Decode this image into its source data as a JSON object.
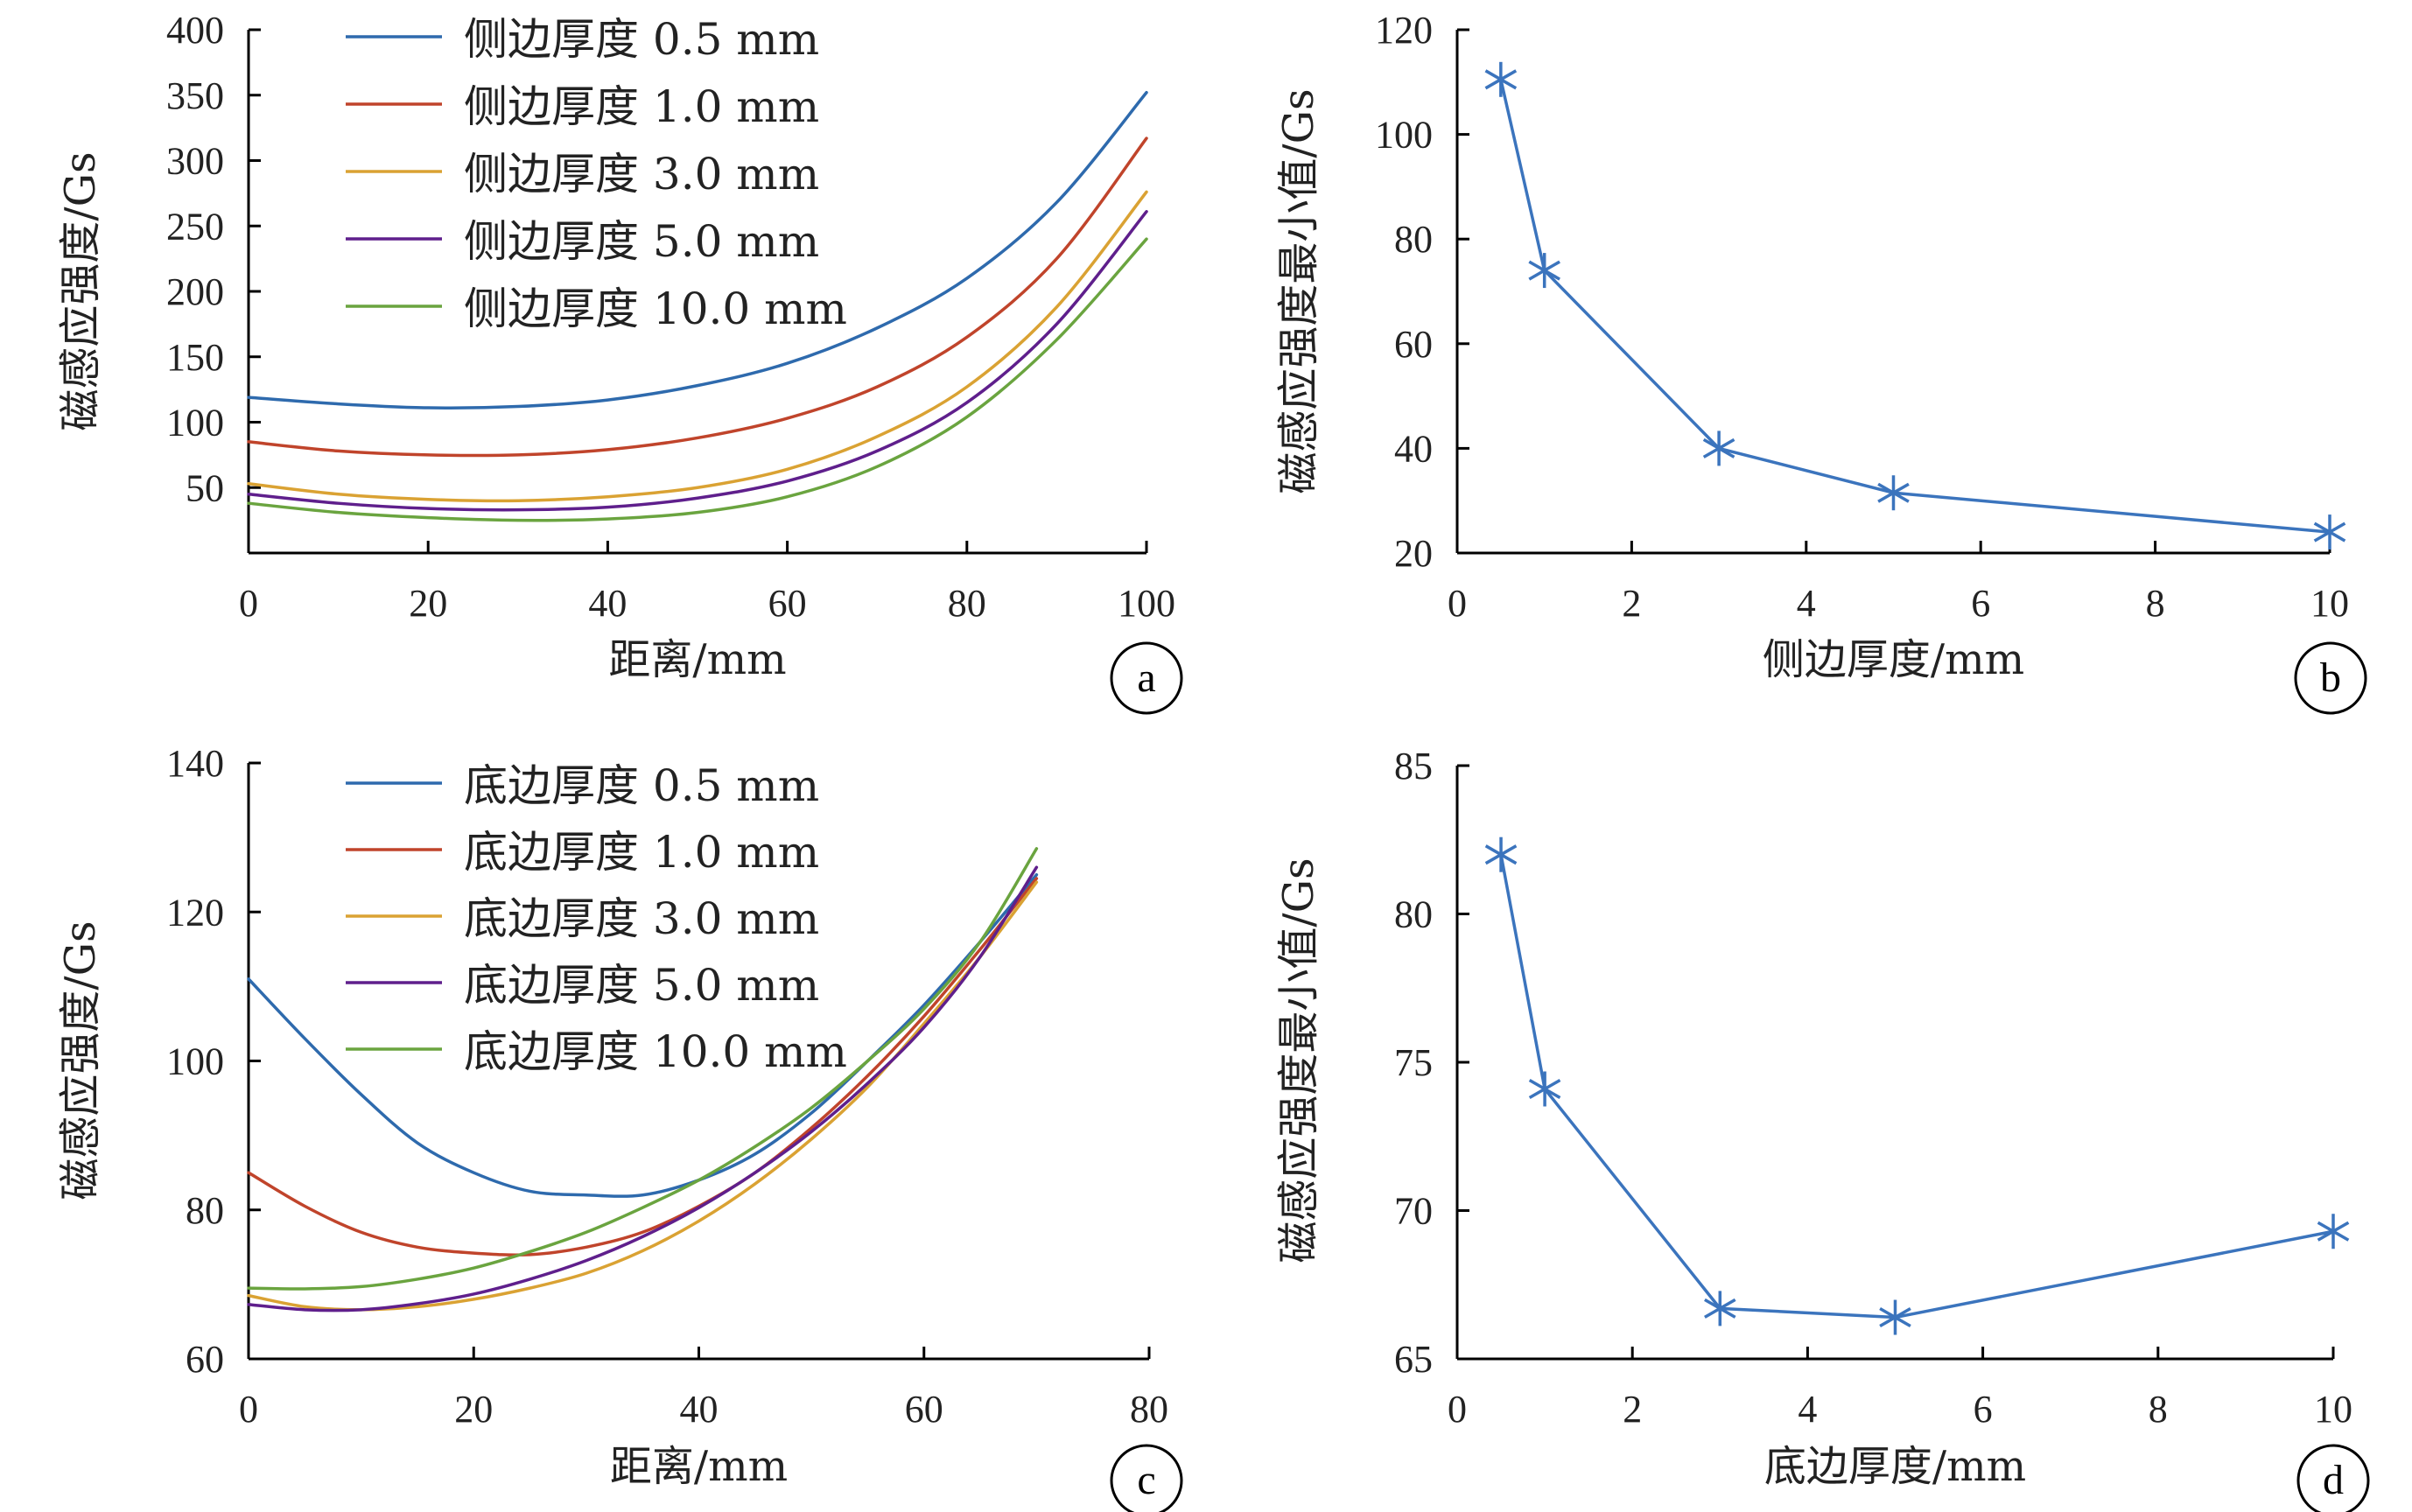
{
  "colors": {
    "blue": "#2e6aad",
    "red": "#c0442b",
    "orange": "#daa233",
    "purple": "#5f1f8c",
    "green": "#6aa43f",
    "marker": "#3b74bd"
  },
  "chart_data": [
    {
      "panel": "a",
      "type": "line",
      "xlabel": "距离/mm",
      "ylabel": "磁感应强度/Gs",
      "xlim": [
        0,
        100
      ],
      "ylim": [
        0,
        400
      ],
      "xticks": [
        0,
        20,
        40,
        60,
        80,
        100
      ],
      "yticks": [
        50,
        100,
        150,
        200,
        250,
        300,
        350,
        400
      ],
      "legend_position": "top-left",
      "series": [
        {
          "name": "侧边厚度 0.5 mm",
          "color": "blue",
          "x": [
            0,
            10,
            20,
            30,
            40,
            50,
            60,
            70,
            80,
            90,
            100
          ],
          "y": [
            119,
            114,
            111,
            112,
            117,
            128,
            145,
            172,
            210,
            268,
            352
          ]
        },
        {
          "name": "侧边厚度 1.0 mm",
          "color": "red",
          "x": [
            0,
            10,
            20,
            30,
            40,
            50,
            60,
            70,
            80,
            90,
            100
          ],
          "y": [
            85,
            78,
            75,
            75,
            79,
            88,
            103,
            127,
            165,
            225,
            317
          ]
        },
        {
          "name": "侧边厚度 3.0 mm",
          "color": "orange",
          "x": [
            0,
            10,
            20,
            30,
            40,
            50,
            60,
            70,
            80,
            90,
            100
          ],
          "y": [
            53,
            45,
            41,
            40,
            43,
            50,
            64,
            89,
            127,
            188,
            276
          ]
        },
        {
          "name": "侧边厚度 5.0 mm",
          "color": "purple",
          "x": [
            0,
            10,
            20,
            30,
            40,
            50,
            60,
            70,
            80,
            90,
            100
          ],
          "y": [
            45,
            38,
            34,
            33,
            35,
            42,
            55,
            78,
            115,
            175,
            261
          ]
        },
        {
          "name": "侧边厚度 10.0 mm",
          "color": "green",
          "x": [
            0,
            10,
            20,
            30,
            40,
            50,
            60,
            70,
            80,
            90,
            100
          ],
          "y": [
            38,
            31,
            27,
            25,
            26,
            31,
            43,
            66,
            104,
            163,
            240
          ]
        }
      ]
    },
    {
      "panel": "b",
      "type": "line",
      "xlabel": "侧边厚度/mm",
      "ylabel": "磁感应强度最小值/Gs",
      "xlim": [
        0,
        10
      ],
      "ylim": [
        20,
        120
      ],
      "xticks": [
        0,
        2,
        4,
        6,
        8,
        10
      ],
      "yticks": [
        20,
        40,
        60,
        80,
        100,
        120
      ],
      "series": [
        {
          "name": "",
          "color": "marker",
          "x": [
            0.5,
            1.0,
            3.0,
            5.0,
            10.0
          ],
          "y": [
            110.5,
            74,
            40,
            31.5,
            24
          ]
        }
      ]
    },
    {
      "panel": "c",
      "type": "line",
      "xlabel": "距离/mm",
      "ylabel": "磁感应强度/Gs",
      "xlim": [
        0,
        80
      ],
      "ylim": [
        60,
        140
      ],
      "xticks": [
        0,
        20,
        40,
        60,
        80
      ],
      "yticks": [
        60,
        80,
        100,
        120,
        140
      ],
      "legend_position": "top-left",
      "series": [
        {
          "name": "底边厚度 0.5 mm",
          "color": "blue",
          "x": [
            0,
            5,
            10,
            15,
            20,
            25,
            30,
            35,
            40,
            45,
            50,
            55,
            60,
            65,
            70
          ],
          "y": [
            111,
            103,
            95.5,
            89,
            85,
            82.5,
            82,
            82,
            84,
            87.5,
            93,
            100,
            107.5,
            116,
            125
          ]
        },
        {
          "name": "底边厚度 1.0 mm",
          "color": "red",
          "x": [
            0,
            5,
            10,
            15,
            20,
            25,
            30,
            35,
            40,
            45,
            50,
            55,
            60,
            65,
            70
          ],
          "y": [
            85,
            80.5,
            77,
            75,
            74.2,
            74,
            75,
            77,
            80.5,
            85,
            91,
            98,
            106,
            115,
            124.5
          ]
        },
        {
          "name": "底边厚度 3.0 mm",
          "color": "orange",
          "x": [
            0,
            5,
            10,
            15,
            20,
            25,
            30,
            35,
            40,
            45,
            50,
            55,
            60,
            65,
            70
          ],
          "y": [
            68.5,
            67,
            66.6,
            67,
            68,
            69.5,
            71.5,
            74.5,
            78.5,
            83.5,
            89.5,
            96.5,
            105,
            114,
            124
          ]
        },
        {
          "name": "底边厚度 5.0 mm",
          "color": "purple",
          "x": [
            0,
            5,
            10,
            15,
            20,
            25,
            30,
            35,
            40,
            45,
            50,
            55,
            60,
            65,
            70
          ],
          "y": [
            67.3,
            66.6,
            66.6,
            67.4,
            68.7,
            70.7,
            73.2,
            76.4,
            80.3,
            85,
            90.5,
            97,
            104.5,
            114,
            126
          ]
        },
        {
          "name": "底边厚度 10.0 mm",
          "color": "green",
          "x": [
            0,
            5,
            10,
            15,
            20,
            25,
            30,
            35,
            40,
            45,
            50,
            55,
            60,
            65,
            70
          ],
          "y": [
            69.5,
            69.4,
            69.7,
            70.7,
            72.2,
            74.4,
            77,
            80.3,
            84,
            88.5,
            93.7,
            100,
            107,
            116,
            128.5
          ]
        }
      ]
    },
    {
      "panel": "d",
      "type": "line",
      "xlabel": "底边厚度/mm",
      "ylabel": "磁感应强度最小值/Gs",
      "xlim": [
        0,
        10
      ],
      "ylim": [
        65,
        85
      ],
      "xticks": [
        0,
        2,
        4,
        6,
        8,
        10
      ],
      "yticks": [
        65,
        70,
        75,
        80,
        85
      ],
      "series": [
        {
          "name": "",
          "color": "marker",
          "x": [
            0.5,
            1.0,
            3.0,
            5.0,
            10.0
          ],
          "y": [
            82,
            74.1,
            66.7,
            66.4,
            69.3
          ]
        }
      ]
    }
  ]
}
